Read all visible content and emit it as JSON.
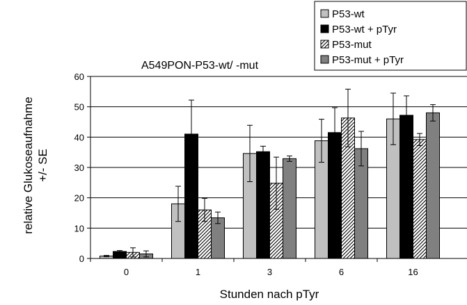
{
  "chart_data": {
    "type": "bar",
    "title": "A549PON-P53-wt/ -mut",
    "xlabel": "Stunden nach pTyr",
    "ylabel_line1": "relative Glukoseaufnahme",
    "ylabel_line2": "+/- SE",
    "ylim": [
      0,
      60
    ],
    "yticks": [
      0,
      10,
      20,
      30,
      40,
      50,
      60
    ],
    "grid": "horizontal",
    "legend_position": "top-right",
    "categories": [
      "0",
      "1",
      "3",
      "6",
      "16"
    ],
    "series": [
      {
        "name": "P53-wt",
        "color": "#c0c0c0",
        "pattern": "solid",
        "values": [
          0.8,
          18.0,
          34.6,
          38.8,
          46.0
        ],
        "errors": [
          0.2,
          5.8,
          9.3,
          7.1,
          8.5
        ]
      },
      {
        "name": "P53-wt + pTyr",
        "color": "#000000",
        "pattern": "solid",
        "values": [
          2.3,
          41.0,
          35.2,
          41.5,
          47.2
        ],
        "errors": [
          0.3,
          11.2,
          1.8,
          8.2,
          6.4
        ]
      },
      {
        "name": "P53-mut",
        "color": "#ffffff",
        "pattern": "hatched",
        "values": [
          2.0,
          16.0,
          24.8,
          46.3,
          39.2
        ],
        "errors": [
          1.5,
          3.8,
          8.6,
          9.5,
          2.0
        ]
      },
      {
        "name": "P53-mut + pTyr",
        "color": "#808080",
        "pattern": "solid",
        "values": [
          1.5,
          13.4,
          32.9,
          36.2,
          48.0
        ],
        "errors": [
          1.0,
          1.9,
          0.9,
          5.7,
          2.7
        ]
      }
    ]
  }
}
